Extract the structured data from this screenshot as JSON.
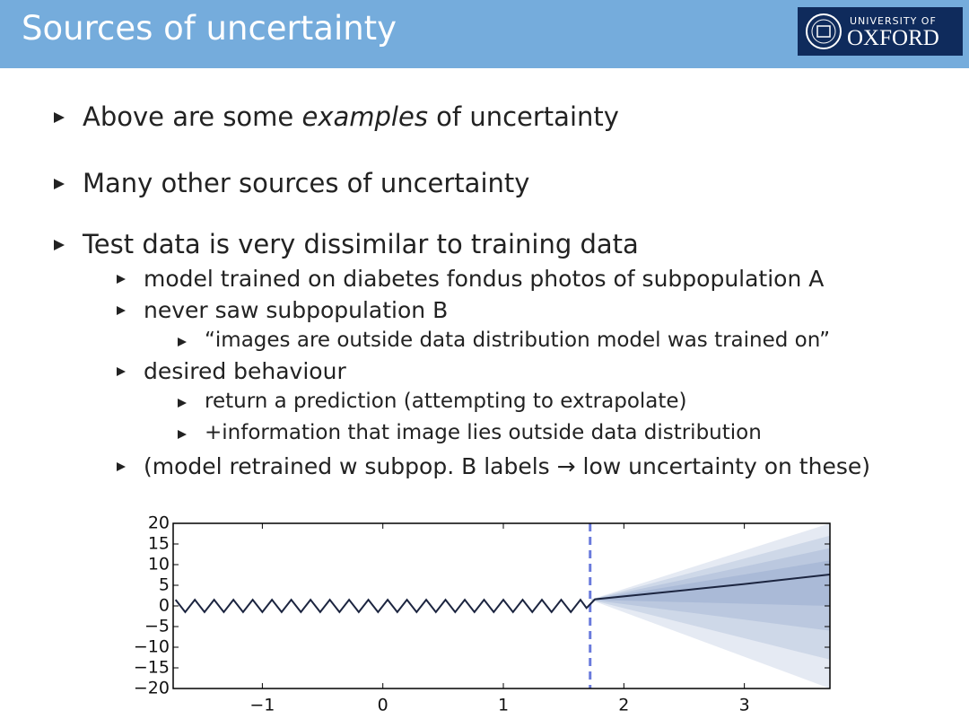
{
  "header": {
    "title": "Sources of uncertainty",
    "logo": [
      "UNIVERSITY OF",
      "OXFORD"
    ]
  },
  "bullets": [
    [
      "Above are some ",
      "examples",
      " of uncertainty"
    ],
    "Many other sources of uncertainty",
    "Test data is very dissimilar to training data"
  ],
  "sub_bullets": [
    "model trained on diabetes fondus photos of subpopulation A",
    "never saw subpopulation B",
    "desired behaviour",
    "(model retrained w subpop. B labels → low uncertainty on these)"
  ],
  "sub_sub_bullets": [
    "“images are outside data distribution model was trained on”",
    "return a prediction (attempting to extrapolate)",
    "+information that image lies outside data distribution"
  ],
  "chart_data": {
    "type": "line",
    "x": [
      -1.72,
      -1.64,
      -1.56,
      -1.48,
      -1.4,
      -1.32,
      -1.24,
      -1.16,
      -1.08,
      -1.0,
      -0.92,
      -0.84,
      -0.76,
      -0.68,
      -0.6,
      -0.52,
      -0.44,
      -0.36,
      -0.28,
      -0.2,
      -0.12,
      -0.04,
      0.04,
      0.12,
      0.2,
      0.28,
      0.36,
      0.44,
      0.52,
      0.6,
      0.68,
      0.76,
      0.84,
      0.92,
      1.0,
      1.08,
      1.16,
      1.24,
      1.32,
      1.4,
      1.48,
      1.56,
      1.64,
      1.69,
      1.76,
      2.2,
      2.6,
      3.0,
      3.4,
      3.71
    ],
    "series": [
      {
        "color": "#1c2540",
        "values": [
          1.5,
          -1.5,
          1.5,
          -1.5,
          1.5,
          -1.5,
          1.5,
          -1.5,
          1.5,
          -1.5,
          1.5,
          -1.5,
          1.5,
          -1.5,
          1.5,
          -1.5,
          1.5,
          -1.5,
          1.5,
          -1.5,
          1.5,
          -1.5,
          1.5,
          -1.5,
          1.5,
          -1.5,
          1.5,
          -1.5,
          1.5,
          -1.5,
          1.5,
          -1.5,
          1.5,
          -1.5,
          1.5,
          -1.5,
          1.5,
          -1.5,
          1.5,
          -1.5,
          1.5,
          -1.5,
          1.5,
          -0.5,
          1.6,
          2.9,
          4.1,
          5.3,
          6.6,
          7.6
        ]
      }
    ],
    "band_x": [
      1.72,
      3.71
    ],
    "band_color": "#4a68ad",
    "bands": [
      {
        "lower": [
          1.5,
          -20
        ],
        "upper": [
          1.5,
          20
        ]
      },
      {
        "lower": [
          1.5,
          -13
        ],
        "upper": [
          1.5,
          17
        ]
      },
      {
        "lower": [
          1.5,
          -6
        ],
        "upper": [
          1.5,
          14
        ]
      },
      {
        "lower": [
          1.5,
          0
        ],
        "upper": [
          1.5,
          11
        ]
      }
    ],
    "vline": {
      "x": 1.72,
      "color": "#6b7bdc"
    },
    "xlim": [
      -1.74,
      3.71
    ],
    "ylim": [
      -20,
      20
    ],
    "xticks": [
      {
        "value": -1,
        "label": "−1"
      },
      0,
      1,
      2,
      3
    ],
    "yticks": [
      20,
      15,
      10,
      5,
      0,
      {
        "value": -5,
        "label": "−5"
      },
      {
        "value": -10,
        "label": "−10"
      },
      {
        "value": -15,
        "label": "−15"
      },
      {
        "value": -20,
        "label": "−20"
      }
    ]
  }
}
